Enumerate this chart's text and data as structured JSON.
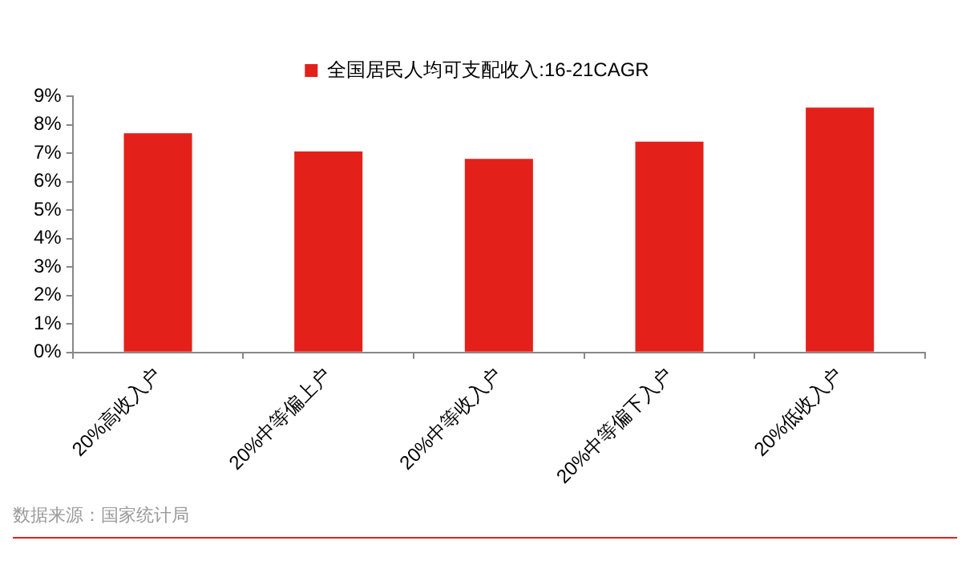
{
  "chart_data": {
    "type": "bar",
    "categories": [
      "20%高收入户",
      "20%中等偏上户",
      "20%中等收入户",
      "20%中等偏下入户",
      "20%低收入户"
    ],
    "series": [
      {
        "name": "全国居民人均可支配收入:16-21CAGR",
        "color": "#e3211a",
        "values": [
          7.7,
          7.06,
          6.8,
          7.4,
          8.6
        ]
      }
    ],
    "ylim": [
      0,
      9
    ],
    "yticks": [
      {
        "value": 0,
        "label": "0%"
      },
      {
        "value": 1,
        "label": "1%"
      },
      {
        "value": 2,
        "label": "2%"
      },
      {
        "value": 3,
        "label": "3%"
      },
      {
        "value": 4,
        "label": "4%"
      },
      {
        "value": 5,
        "label": "5%"
      },
      {
        "value": 6,
        "label": "6%"
      },
      {
        "value": 7,
        "label": "7%"
      },
      {
        "value": 8,
        "label": "8%"
      },
      {
        "value": 9,
        "label": "9%"
      }
    ],
    "grid": false,
    "legend": "top",
    "annotations": [
      "数据来源：国家统计局"
    ]
  }
}
